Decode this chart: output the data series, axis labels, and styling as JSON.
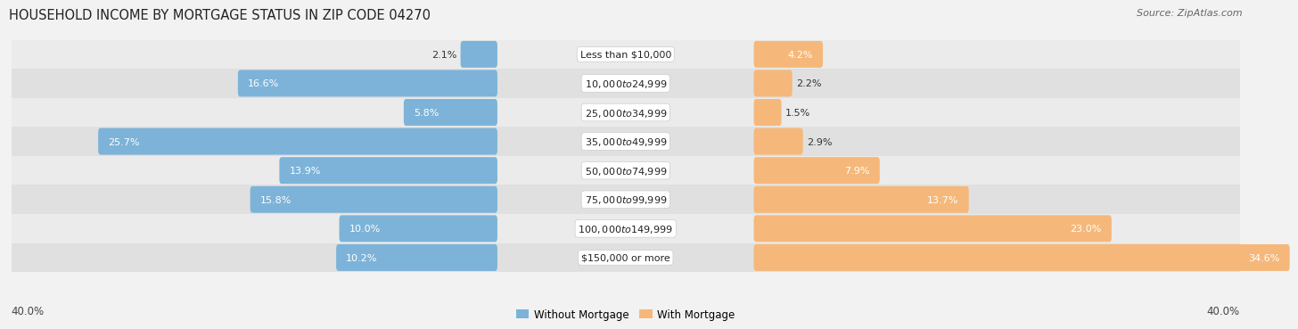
{
  "title": "HOUSEHOLD INCOME BY MORTGAGE STATUS IN ZIP CODE 04270",
  "source": "Source: ZipAtlas.com",
  "categories": [
    "Less than $10,000",
    "$10,000 to $24,999",
    "$25,000 to $34,999",
    "$35,000 to $49,999",
    "$50,000 to $74,999",
    "$75,000 to $99,999",
    "$100,000 to $149,999",
    "$150,000 or more"
  ],
  "without_mortgage": [
    2.1,
    16.6,
    5.8,
    25.7,
    13.9,
    15.8,
    10.0,
    10.2
  ],
  "with_mortgage": [
    4.2,
    2.2,
    1.5,
    2.9,
    7.9,
    13.7,
    23.0,
    34.6
  ],
  "color_without": "#7db3d8",
  "color_with": "#f5b87a",
  "bg_color": "#f2f2f2",
  "row_color_light": "#ebebeb",
  "row_color_dark": "#e0e0e0",
  "xlim": 40.0,
  "label_zone": 8.5,
  "axis_label": "40.0%",
  "legend_without": "Without Mortgage",
  "legend_with": "With Mortgage",
  "title_fontsize": 10.5,
  "source_fontsize": 8,
  "bar_label_fontsize": 8,
  "cat_label_fontsize": 8
}
